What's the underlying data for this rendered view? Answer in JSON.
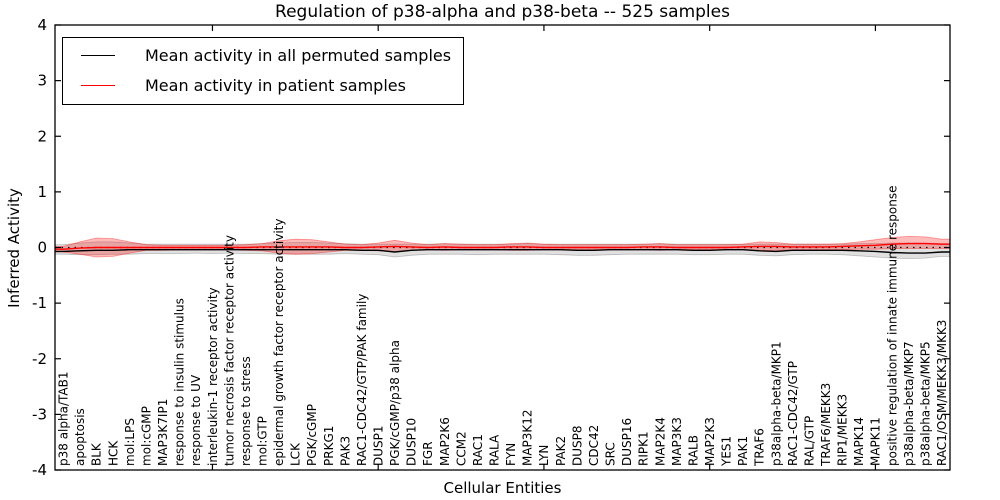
{
  "title": "Regulation of p38-alpha and p38-beta -- 525 samples",
  "axes": {
    "xlabel": "Cellular Entities",
    "ylabel": "Inferred Activity"
  },
  "legend": {
    "items": [
      {
        "label": "Mean activity in all permuted samples",
        "color": "#000000"
      },
      {
        "label": "Mean activity in patient samples",
        "color": "#ff0000"
      }
    ]
  },
  "chart_data": {
    "type": "line",
    "title": "Regulation of p38-alpha and p38-beta -- 525 samples",
    "xlabel": "Cellular Entities",
    "ylabel": "Inferred Activity",
    "ylim": [
      -4,
      4
    ],
    "yticks": [
      4,
      3,
      2,
      1,
      0,
      -1,
      -2,
      -3,
      -4
    ],
    "xtick_positions": [
      10,
      20,
      30,
      40,
      50
    ],
    "xtick_rotation": 90,
    "grid": false,
    "legend_position": "upper left",
    "zero_line": {
      "style": "dotted",
      "color": "#000000",
      "y": 0
    },
    "categories": [
      "p38 alpha/TAB1",
      "apoptosis",
      "BLK",
      "HCK",
      "mol:LPS",
      "mol:cGMP",
      "MAP3K7IP1",
      "response to insulin stimulus",
      "response to UV",
      "interleukin-1 receptor activity",
      "tumor necrosis factor receptor activity",
      "response to stress",
      "mol:GTP",
      "epidermal growth factor receptor activity",
      "LCK",
      "PGK/cGMP",
      "PRKG1",
      "PAK3",
      "RAC1-CDC42/GTP/PAK family",
      "DUSP1",
      "PGK/cGMP/p38 alpha",
      "DUSP10",
      "FGR",
      "MAP2K6",
      "CCM2",
      "RAC1",
      "RALA",
      "FYN",
      "MAP3K12",
      "LYN",
      "PAK2",
      "DUSP8",
      "CDC42",
      "SRC",
      "DUSP16",
      "RIPK1",
      "MAP2K4",
      "MAP3K3",
      "RALB",
      "MAP2K3",
      "YES1",
      "PAK1",
      "TRAF6",
      "p38alpha-beta/MKP1",
      "RAC1-CDC42/GTP",
      "RAL/GTP",
      "TRAF6/MEKK3",
      "RIP1/MEKK3",
      "MAPK14",
      "MAPK11",
      "positive regulation of innate immune response",
      "p38alpha-beta/MKP7",
      "p38alpha-beta/MKP5",
      "RAC1/OSM/MEKK3/MKK3"
    ],
    "series": [
      {
        "name": "Mean activity in all permuted samples",
        "color": "#000000",
        "values": [
          -0.07,
          -0.06,
          -0.05,
          -0.05,
          -0.04,
          -0.04,
          -0.04,
          -0.04,
          -0.04,
          -0.04,
          -0.04,
          -0.04,
          -0.04,
          -0.04,
          -0.04,
          -0.04,
          -0.04,
          -0.04,
          -0.05,
          -0.05,
          -0.08,
          -0.05,
          -0.04,
          -0.04,
          -0.04,
          -0.04,
          -0.04,
          -0.04,
          -0.04,
          -0.04,
          -0.04,
          -0.05,
          -0.05,
          -0.04,
          -0.04,
          -0.04,
          -0.04,
          -0.04,
          -0.05,
          -0.05,
          -0.04,
          -0.04,
          -0.06,
          -0.07,
          -0.05,
          -0.05,
          -0.05,
          -0.05,
          -0.06,
          -0.07,
          -0.09,
          -0.1,
          -0.1,
          -0.08
        ]
      },
      {
        "name": "Mean activity in patient samples",
        "color": "#ff0000",
        "values": [
          -0.03,
          -0.01,
          0.0,
          0.0,
          0.0,
          0.0,
          0.0,
          0.0,
          0.0,
          0.0,
          0.0,
          0.0,
          0.01,
          0.01,
          0.01,
          0.01,
          0.01,
          0.0,
          0.0,
          0.01,
          0.02,
          0.01,
          0.0,
          0.01,
          0.0,
          0.0,
          0.0,
          0.01,
          0.01,
          0.0,
          0.0,
          0.0,
          0.0,
          0.0,
          0.0,
          0.01,
          0.01,
          0.0,
          0.0,
          0.0,
          0.0,
          0.01,
          0.02,
          0.02,
          0.01,
          0.01,
          0.01,
          0.02,
          0.03,
          0.04,
          0.06,
          0.07,
          0.07,
          0.06
        ]
      }
    ],
    "bands": [
      {
        "name": "permuted samples range",
        "color": "#000000",
        "fill_opacity": 0.12,
        "edge_opacity": 0.22,
        "upper": [
          0.05,
          0.08,
          0.1,
          0.1,
          0.08,
          0.06,
          0.06,
          0.06,
          0.06,
          0.06,
          0.06,
          0.06,
          0.07,
          0.08,
          0.09,
          0.09,
          0.08,
          0.07,
          0.06,
          0.06,
          0.06,
          0.06,
          0.06,
          0.07,
          0.06,
          0.06,
          0.06,
          0.06,
          0.07,
          0.06,
          0.06,
          0.06,
          0.06,
          0.06,
          0.06,
          0.06,
          0.07,
          0.06,
          0.06,
          0.06,
          0.06,
          0.06,
          0.06,
          0.06,
          0.06,
          0.06,
          0.06,
          0.06,
          0.07,
          0.07,
          0.08,
          0.08,
          0.08,
          0.07
        ],
        "lower": [
          -0.12,
          -0.13,
          -0.13,
          -0.12,
          -0.12,
          -0.11,
          -0.11,
          -0.11,
          -0.1,
          -0.11,
          -0.1,
          -0.11,
          -0.11,
          -0.12,
          -0.12,
          -0.12,
          -0.12,
          -0.11,
          -0.12,
          -0.13,
          -0.17,
          -0.14,
          -0.12,
          -0.12,
          -0.12,
          -0.13,
          -0.12,
          -0.12,
          -0.12,
          -0.12,
          -0.13,
          -0.14,
          -0.14,
          -0.13,
          -0.12,
          -0.12,
          -0.12,
          -0.12,
          -0.13,
          -0.13,
          -0.12,
          -0.12,
          -0.14,
          -0.15,
          -0.13,
          -0.12,
          -0.12,
          -0.13,
          -0.15,
          -0.17,
          -0.19,
          -0.2,
          -0.19,
          -0.16
        ]
      },
      {
        "name": "patient samples range",
        "color": "#ff0000",
        "fill_opacity": 0.27,
        "edge_opacity": 0.4,
        "upper": [
          0.02,
          0.1,
          0.17,
          0.16,
          0.1,
          0.05,
          0.04,
          0.04,
          0.04,
          0.04,
          0.04,
          0.05,
          0.07,
          0.12,
          0.15,
          0.14,
          0.1,
          0.06,
          0.05,
          0.08,
          0.13,
          0.08,
          0.05,
          0.07,
          0.06,
          0.05,
          0.05,
          0.07,
          0.08,
          0.06,
          0.05,
          0.05,
          0.05,
          0.05,
          0.05,
          0.06,
          0.07,
          0.05,
          0.05,
          0.05,
          0.05,
          0.06,
          0.1,
          0.09,
          0.06,
          0.06,
          0.06,
          0.07,
          0.1,
          0.14,
          0.18,
          0.2,
          0.19,
          0.15
        ],
        "lower": [
          -0.08,
          -0.12,
          -0.17,
          -0.16,
          -0.1,
          -0.05,
          -0.05,
          -0.04,
          -0.04,
          -0.04,
          -0.04,
          -0.05,
          -0.06,
          -0.1,
          -0.12,
          -0.11,
          -0.08,
          -0.05,
          -0.05,
          -0.06,
          -0.08,
          -0.05,
          -0.04,
          -0.05,
          -0.04,
          -0.04,
          -0.04,
          -0.05,
          -0.05,
          -0.04,
          -0.04,
          -0.04,
          -0.04,
          -0.04,
          -0.04,
          -0.04,
          -0.05,
          -0.04,
          -0.04,
          -0.04,
          -0.04,
          -0.04,
          -0.05,
          -0.05,
          -0.04,
          -0.04,
          -0.04,
          -0.04,
          -0.03,
          -0.03,
          -0.02,
          -0.02,
          -0.02,
          -0.02
        ]
      }
    ]
  }
}
